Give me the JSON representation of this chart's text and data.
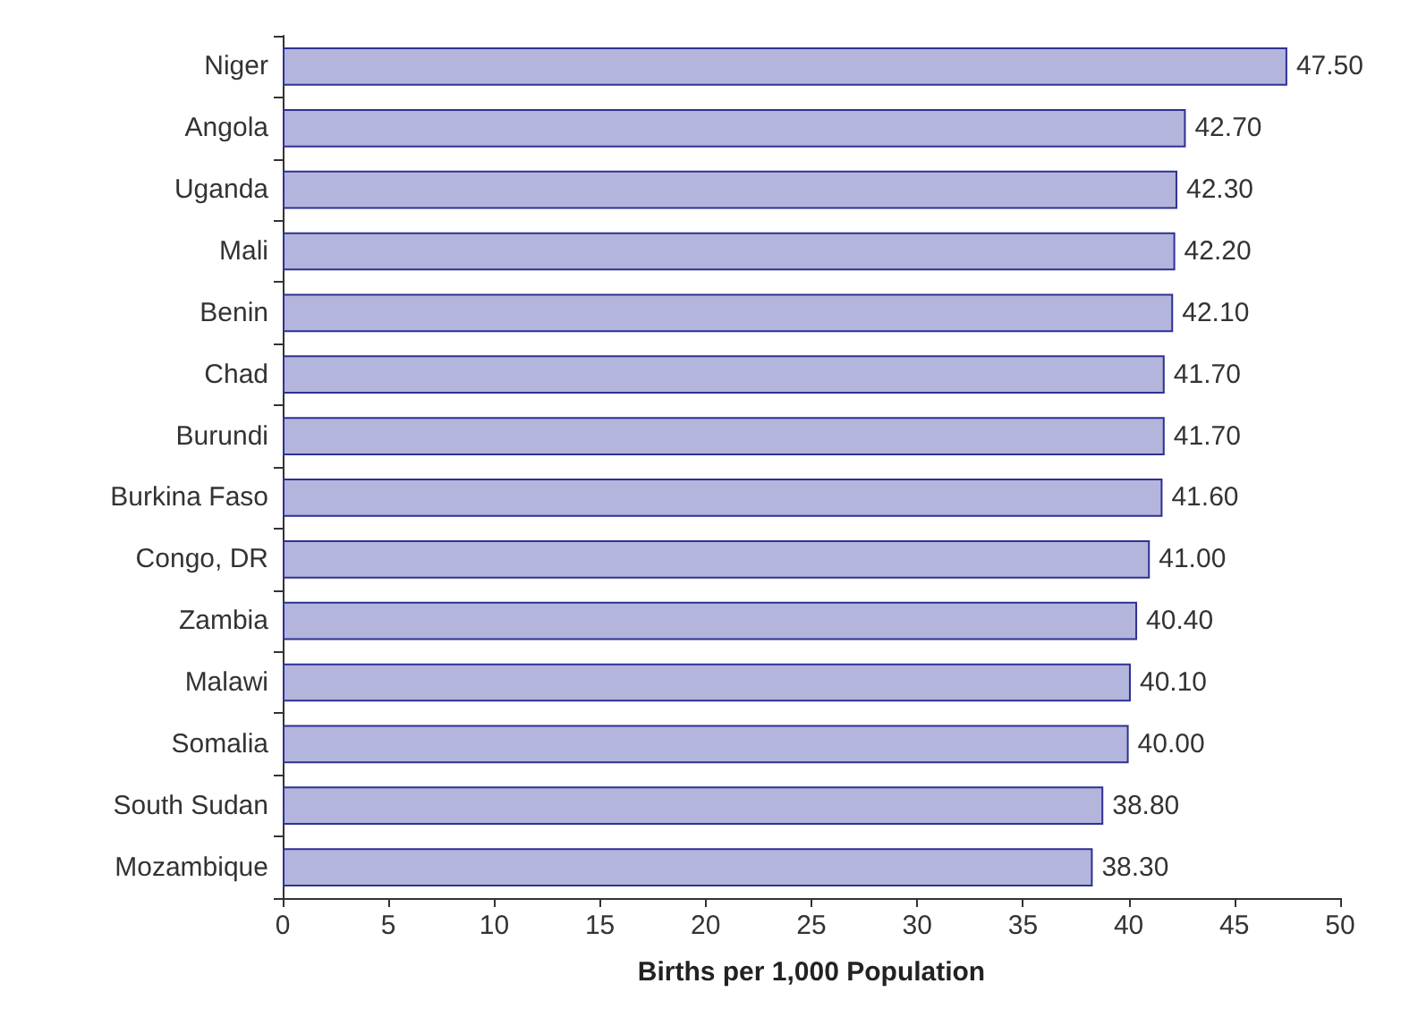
{
  "chart_data": {
    "type": "bar",
    "orientation": "horizontal",
    "xlabel": "Births per 1,000 Population",
    "categories": [
      "Niger",
      "Angola",
      "Uganda",
      "Mali",
      "Benin",
      "Chad",
      "Burundi",
      "Burkina Faso",
      "Congo, DR",
      "Zambia",
      "Malawi",
      "Somalia",
      "South Sudan",
      "Mozambique"
    ],
    "values": [
      47.5,
      42.7,
      42.3,
      42.2,
      42.1,
      41.7,
      41.7,
      41.6,
      41.0,
      40.4,
      40.1,
      40.0,
      38.8,
      38.3
    ],
    "value_labels": [
      "47.50",
      "42.70",
      "42.30",
      "42.20",
      "42.10",
      "41.70",
      "41.70",
      "41.60",
      "41.00",
      "40.40",
      "40.10",
      "40.00",
      "38.80",
      "38.30"
    ],
    "color": "#b3b5dc",
    "xlim": [
      0,
      50
    ],
    "xticks": [
      0,
      5,
      10,
      15,
      20,
      25,
      30,
      35,
      40,
      45,
      50
    ],
    "grid": false
  }
}
